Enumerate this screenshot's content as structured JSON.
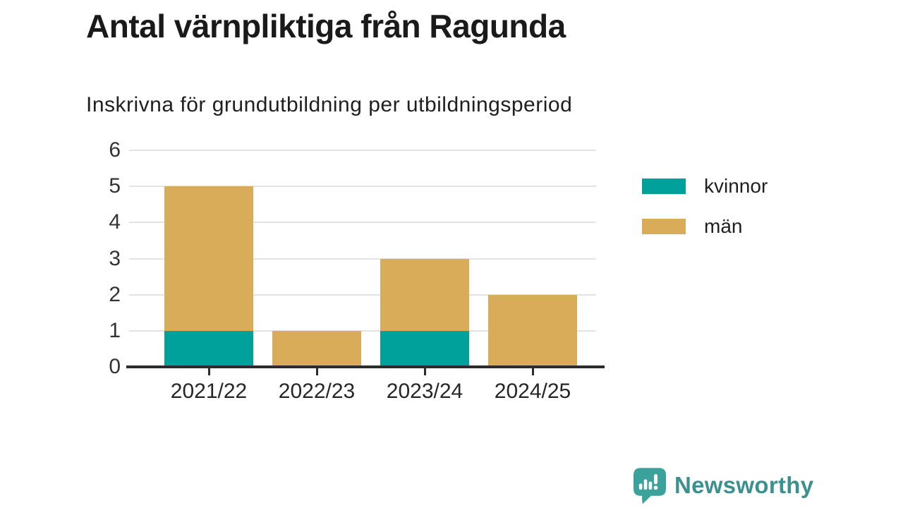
{
  "title": "Antal värnpliktiga från Ragunda",
  "subtitle": "Inskrivna för grundutbildning per utbildningsperiod",
  "chart_data": {
    "type": "bar",
    "stacked": true,
    "title": "Antal värnpliktiga från Ragunda",
    "subtitle": "Inskrivna för grundutbildning per utbildningsperiod",
    "categories": [
      "2021/22",
      "2022/23",
      "2023/24",
      "2024/25"
    ],
    "series": [
      {
        "name": "kvinnor",
        "color": "#00a19a",
        "values": [
          1,
          0,
          1,
          0
        ]
      },
      {
        "name": "män",
        "color": "#d9ac5a",
        "values": [
          4,
          1,
          2,
          2
        ]
      }
    ],
    "totals": [
      5,
      1,
      3,
      2
    ],
    "xlabel": "",
    "ylabel": "",
    "ylim": [
      0,
      6
    ],
    "yticks": [
      0,
      1,
      2,
      3,
      4,
      5,
      6
    ],
    "grid": "horizontal",
    "legend_position": "right"
  },
  "legend": {
    "items": [
      {
        "label": "kvinnor",
        "color": "#00a19a"
      },
      {
        "label": "män",
        "color": "#d9ac5a"
      }
    ]
  },
  "footer": {
    "brand": "Newsworthy",
    "brand_color": "#3c918e",
    "logo_icon": "speech-bubble-bar-chart-icon",
    "logo_color": "#3ba29b"
  },
  "colors": {
    "axis": "#2d2d2d",
    "gridline": "#e3e3e3",
    "tick_text": "#333333"
  }
}
